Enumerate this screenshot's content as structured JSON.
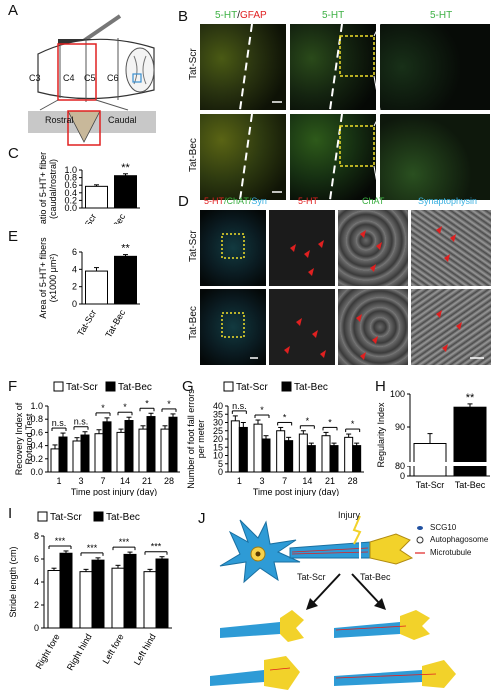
{
  "figure": {
    "panel_letters": [
      "A",
      "B",
      "C",
      "D",
      "E",
      "F",
      "G",
      "H",
      "I",
      "J"
    ],
    "colors": {
      "red": "#e02020",
      "green": "#3cb043",
      "cyan": "#3ab0e0",
      "black": "#000000",
      "white": "#ffffff",
      "tan": "#c8b89a",
      "neuron": "#2e9bd6",
      "axon_yellow": "#f2d22a"
    }
  },
  "panelA": {
    "segments": [
      "C3",
      "C4",
      "C5",
      "C6"
    ],
    "rostral": "Rostral",
    "caudal": "Caudal"
  },
  "panelB": {
    "col1_label_a": "5-HT",
    "col1_label_sep": "/",
    "col1_label_b": "GFAP",
    "col2_label": "5-HT",
    "col3_label": "5-HT",
    "rows": [
      "Tat-Scr",
      "Tat-Bec"
    ]
  },
  "panelD": {
    "col1_a": "5-HT",
    "col1_b": "/ChAT/",
    "col1_c": "Syn",
    "col2": "5-HT",
    "col3": "ChAT",
    "col4": "Synaptophysin",
    "rows": [
      "Tat-Scr",
      "Tat-Bec"
    ]
  },
  "chart_data": [
    {
      "panel": "C",
      "type": "bar",
      "categories": [
        "Tat-Scr",
        "Tat-Bec"
      ],
      "values": [
        0.57,
        0.85
      ],
      "errors": [
        0.04,
        0.05
      ],
      "ylabel_line1": "Ratio of 5-HT+ fibers",
      "ylabel_line2": "(caudal/rostral)",
      "ylim": [
        0,
        1.0
      ],
      "yticks": [
        "0.0",
        "0.2",
        "0.4",
        "0.6",
        "0.8",
        "1.0"
      ],
      "significance": "**"
    },
    {
      "panel": "E",
      "type": "bar",
      "categories": [
        "Tat-Scr",
        "Tat-Bec"
      ],
      "values": [
        3.8,
        5.5
      ],
      "errors": [
        0.4,
        0.2
      ],
      "ylabel_line1": "Area of 5-HT+ fibers",
      "ylabel_line2": "(x1000 μm²)",
      "ylim": [
        0,
        6
      ],
      "yticks": [
        "0",
        "2",
        "4",
        "6"
      ],
      "significance": "**"
    },
    {
      "panel": "F",
      "type": "bar",
      "legend": [
        "Tat-Scr",
        "Tat-Bec"
      ],
      "categories": [
        "1",
        "3",
        "7",
        "14",
        "21",
        "28"
      ],
      "series": [
        {
          "name": "Tat-Scr",
          "values": [
            0.35,
            0.47,
            0.58,
            0.6,
            0.65,
            0.65
          ],
          "errors": [
            0.06,
            0.05,
            0.06,
            0.05,
            0.05,
            0.05
          ]
        },
        {
          "name": "Tat-Bec",
          "values": [
            0.53,
            0.56,
            0.76,
            0.78,
            0.84,
            0.83
          ],
          "errors": [
            0.06,
            0.05,
            0.06,
            0.05,
            0.05,
            0.05
          ]
        }
      ],
      "significance": [
        "n.s.",
        "n.s.",
        "*",
        "*",
        "*",
        "*"
      ],
      "ylabel_line1": "Recovery Index of",
      "ylabel_line2": "Rotarod Test",
      "xlabel": "Time post injury (day)",
      "ylim": [
        0,
        1.0
      ],
      "yticks": [
        "0.0",
        "0.2",
        "0.4",
        "0.6",
        "0.8",
        "1.0"
      ]
    },
    {
      "panel": "G",
      "type": "bar",
      "legend": [
        "Tat-Scr",
        "Tat-Bec"
      ],
      "categories": [
        "1",
        "3",
        "7",
        "14",
        "21",
        "28"
      ],
      "series": [
        {
          "name": "Tat-Scr",
          "values": [
            31,
            29,
            25,
            23,
            22,
            21
          ],
          "errors": [
            3,
            2.5,
            2,
            2,
            2,
            2
          ]
        },
        {
          "name": "Tat-Bec",
          "values": [
            27,
            20,
            19,
            16,
            16,
            16
          ],
          "errors": [
            3,
            2,
            2,
            1.5,
            1.5,
            1.5
          ]
        }
      ],
      "significance": [
        "n.s.",
        "*",
        "*",
        "*",
        "*",
        "*"
      ],
      "ylabel_line1": "Number of foot fall errors",
      "ylabel_line2": "per meter",
      "xlabel": "Time post injury (day)",
      "ylim": [
        0,
        40
      ],
      "yticks": [
        "0",
        "5",
        "10",
        "15",
        "20",
        "25",
        "30",
        "35",
        "40"
      ]
    },
    {
      "panel": "H",
      "type": "bar",
      "categories": [
        "Tat-Scr",
        "Tat-Bec"
      ],
      "values": [
        85,
        96
      ],
      "errors": [
        3,
        1
      ],
      "ylabel": "Regularity Index",
      "ylim": [
        0,
        100
      ],
      "yticks": [
        "0",
        "80",
        "90",
        "100"
      ],
      "significance": "**"
    },
    {
      "panel": "I",
      "type": "bar",
      "legend": [
        "Tat-Scr",
        "Tat-Bec"
      ],
      "categories": [
        "Right fore",
        "Right hind",
        "Left fore",
        "Left hind"
      ],
      "series": [
        {
          "name": "Tat-Scr",
          "values": [
            5.0,
            4.9,
            5.2,
            4.9
          ],
          "errors": [
            0.2,
            0.2,
            0.25,
            0.2
          ]
        },
        {
          "name": "Tat-Bec",
          "values": [
            6.5,
            5.9,
            6.4,
            6.0
          ],
          "errors": [
            0.2,
            0.2,
            0.2,
            0.2
          ]
        }
      ],
      "significance": [
        "***",
        "***",
        "***",
        "***"
      ],
      "ylabel": "Stride length (cm)",
      "ylim": [
        0,
        8
      ],
      "yticks": [
        "0",
        "2",
        "4",
        "6",
        "8"
      ]
    }
  ],
  "panelJ": {
    "injury": "Injury",
    "legend": [
      "SCG10",
      "Autophagosome",
      "Microtubule"
    ],
    "arrow_left": "Tat-Scr",
    "arrow_right": "Tat-Bec"
  }
}
